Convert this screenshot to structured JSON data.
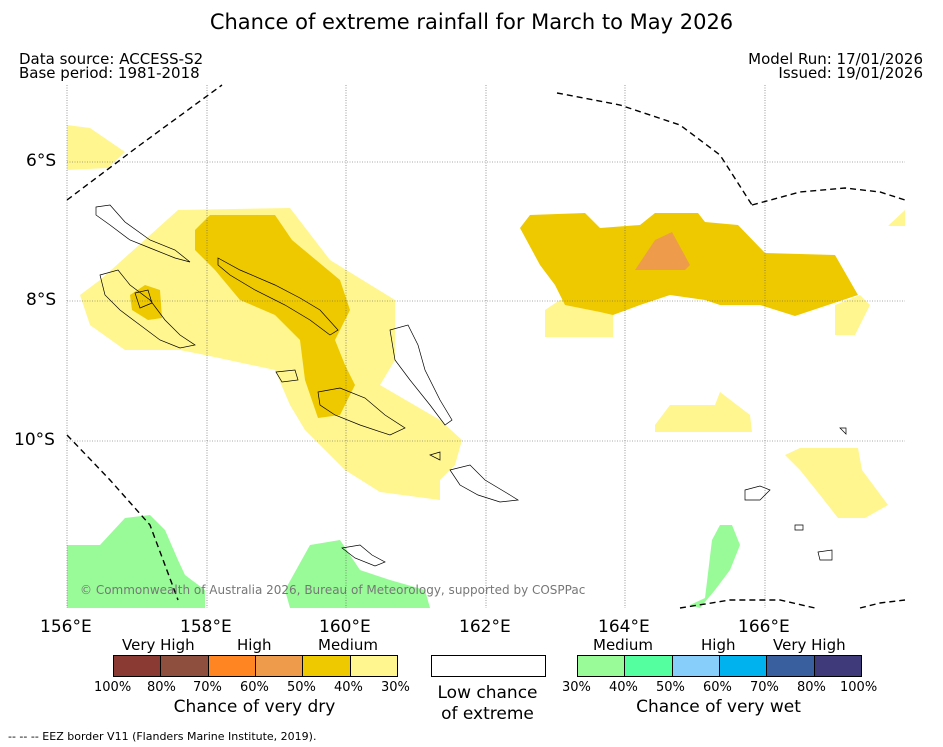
{
  "title": "Chance of extreme rainfall for March to May 2026",
  "data_source": "Data source: ACCESS-S2",
  "base_period": "Base period: 1981-2018",
  "model_run": "Model Run: 17/01/2026",
  "issued": "Issued: 19/01/2026",
  "copyright": "© Commonwealth of Australia 2026, Bureau of Meteorology, supported by COSPPac",
  "lat_labels": [
    "6°S",
    "8°S",
    "10°S"
  ],
  "lon_labels": [
    "156°E",
    "158°E",
    "160°E",
    "162°E",
    "164°E",
    "166°E"
  ],
  "legend_dry": {
    "title": "Chance of very dry",
    "categories": [
      "Very High",
      "High",
      "Medium"
    ],
    "colors": [
      "#8b3a33",
      "#8e4f3e",
      "#ff8422",
      "#ee9c4b",
      "#eec900",
      "#fff68f"
    ],
    "ticks": [
      "100%",
      "80%",
      "70%",
      "60%",
      "50%",
      "40%",
      "30%"
    ]
  },
  "legend_low": {
    "line1": "Low chance",
    "line2": "of extreme",
    "color": "#ffffff"
  },
  "legend_wet": {
    "title": "Chance of very wet",
    "categories": [
      "Medium",
      "High",
      "Very High"
    ],
    "colors": [
      "#98fb98",
      "#54ff9f",
      "#87cefa",
      "#00b2ee",
      "#3a5f9e",
      "#3f3a7a"
    ],
    "ticks": [
      "30%",
      "40%",
      "50%",
      "60%",
      "70%",
      "80%",
      "100%"
    ]
  },
  "footnote": "-- -- -- EEZ border V11 (Flanders Marine Institute, 2019)."
}
